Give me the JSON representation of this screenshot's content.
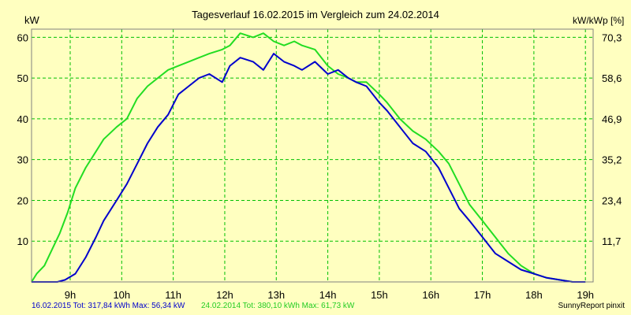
{
  "chart_data": {
    "type": "line",
    "title": "Tagesverlauf 16.02.2015 im Vergleich zum 24.02.2014",
    "ylabel_left": "kW",
    "ylabel_right": "kW/kWp [%]",
    "ylim": [
      0,
      62
    ],
    "y_ticks_left": [
      "10",
      "20",
      "30",
      "40",
      "50",
      "60"
    ],
    "y_ticks_right": [
      "11,7",
      "23,4",
      "35,2",
      "46,9",
      "58,6",
      "70,3"
    ],
    "xlim": [
      8.25,
      19.15
    ],
    "x_ticks": [
      "9h",
      "10h",
      "11h",
      "12h",
      "13h",
      "14h",
      "15h",
      "16h",
      "17h",
      "18h",
      "19h"
    ],
    "grid": true,
    "legend": "bottom",
    "colors": {
      "background": "#ffffc0",
      "grid": "#00c000",
      "series_2015": "#0000cc",
      "series_2014": "#22dd22"
    },
    "series": [
      {
        "name": "16.02.2015",
        "color": "#0000cc",
        "x": [
          8.25,
          8.35,
          8.5,
          8.6,
          8.75,
          8.9,
          9.1,
          9.3,
          9.5,
          9.65,
          9.9,
          10.1,
          10.3,
          10.5,
          10.7,
          10.9,
          11.1,
          11.3,
          11.5,
          11.7,
          11.95,
          12.1,
          12.3,
          12.55,
          12.75,
          12.95,
          13.15,
          13.35,
          13.5,
          13.75,
          14.0,
          14.2,
          14.4,
          14.55,
          14.75,
          15.0,
          15.15,
          15.4,
          15.65,
          15.9,
          16.15,
          16.35,
          16.55,
          16.75,
          17.0,
          17.25,
          17.5,
          17.75,
          18.0,
          18.25,
          18.5,
          18.75,
          19.0
        ],
        "values": [
          0,
          0,
          0,
          0,
          0,
          0.5,
          2,
          6,
          11,
          15,
          20,
          24,
          29,
          34,
          38,
          41,
          46,
          48,
          50,
          51,
          49,
          53,
          55,
          54,
          52,
          56,
          54,
          53,
          52,
          54,
          51,
          52,
          50,
          49,
          48,
          44,
          42,
          38,
          34,
          32,
          28,
          23,
          18,
          15,
          11,
          7,
          5,
          3,
          2,
          1,
          0.5,
          0,
          0
        ]
      },
      {
        "name": "24.02.2014",
        "color": "#22dd22",
        "x": [
          8.25,
          8.35,
          8.5,
          8.65,
          8.8,
          8.95,
          9.1,
          9.3,
          9.5,
          9.65,
          9.9,
          10.1,
          10.3,
          10.5,
          10.7,
          10.9,
          11.1,
          11.3,
          11.5,
          11.7,
          11.95,
          12.1,
          12.3,
          12.55,
          12.75,
          12.95,
          13.15,
          13.35,
          13.5,
          13.75,
          14.0,
          14.2,
          14.4,
          14.55,
          14.75,
          15.0,
          15.15,
          15.4,
          15.65,
          15.9,
          16.15,
          16.35,
          16.55,
          16.75,
          17.0,
          17.25,
          17.5,
          17.75,
          18.0,
          18.25,
          18.5,
          18.75,
          19.0
        ],
        "values": [
          0,
          2,
          4,
          8,
          12,
          17,
          23,
          28,
          32,
          35,
          38,
          40,
          45,
          48,
          50,
          52,
          53,
          54,
          55,
          56,
          57,
          58,
          61,
          60,
          61,
          59,
          58,
          59,
          58,
          57,
          53,
          51,
          50,
          49,
          49,
          46,
          44,
          40,
          37,
          35,
          32,
          29,
          24,
          19,
          15,
          11,
          7,
          4,
          2,
          1,
          0.5,
          0,
          0
        ]
      }
    ],
    "footer": {
      "label_2015": "16.02.2015 Tot: 317,84 kWh Max: 56,34 kW",
      "label_2014": "24.02.2014 Tot: 380,10 kWh Max: 61,73 kW",
      "credit": "SunnyReport pinxit"
    }
  }
}
